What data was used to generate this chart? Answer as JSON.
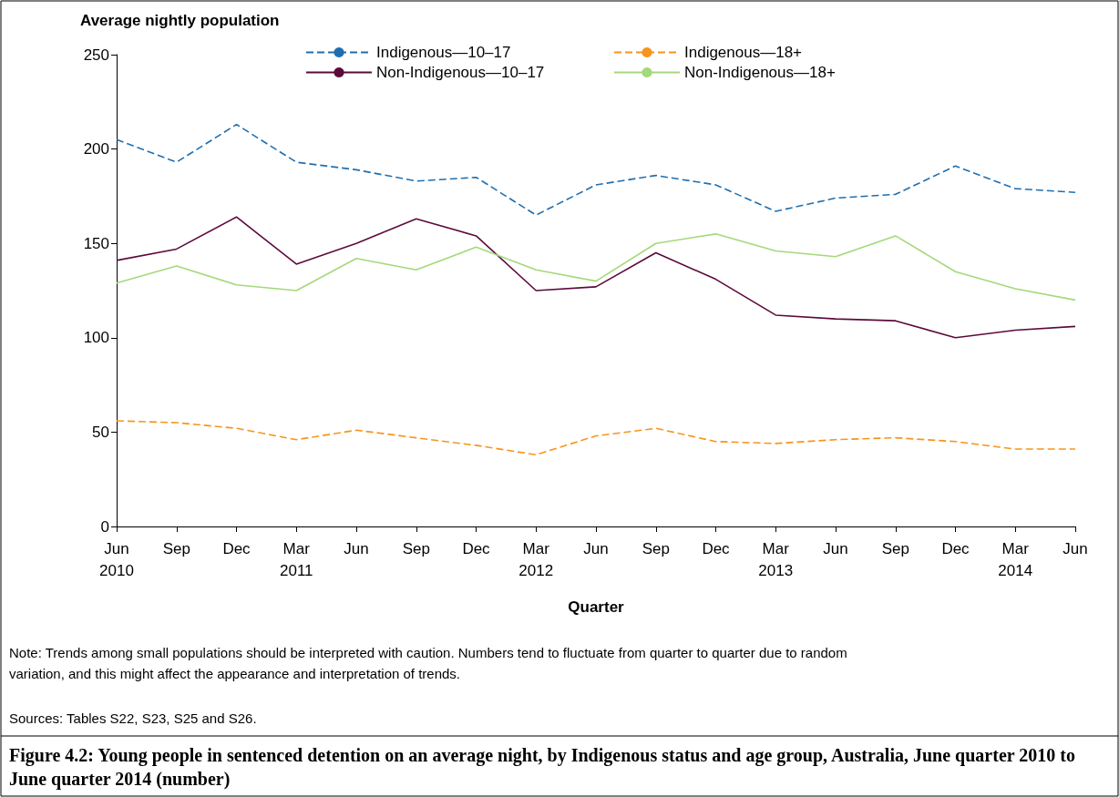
{
  "chart_data": {
    "type": "line",
    "title": "Figure 4.2: Young people in sentenced detention on an average night, by Indigenous status and age group, Australia, June quarter 2010 to June quarter 2014 (number)",
    "ylabel": "Average nightly population",
    "xlabel": "Quarter",
    "categories": [
      "Jun\n2010",
      "Sep",
      "Dec",
      "Mar\n2011",
      "Jun",
      "Sep",
      "Dec",
      "Mar\n2012",
      "Jun",
      "Sep",
      "Dec",
      "Mar\n2013",
      "Jun",
      "Sep",
      "Dec",
      "Mar\n2014",
      "Jun"
    ],
    "series": [
      {
        "name": "Indigenous—10–17",
        "color": "#1f6fb0",
        "line_style": "dashed",
        "values": [
          205,
          193,
          213,
          193,
          189,
          183,
          185,
          165,
          181,
          186,
          181,
          167,
          174,
          176,
          191,
          179,
          177
        ]
      },
      {
        "name": "Indigenous—18+",
        "color": "#f7941d",
        "line_style": "dashed",
        "values": [
          56,
          55,
          52,
          46,
          51,
          47,
          43,
          38,
          48,
          52,
          45,
          44,
          46,
          47,
          45,
          41,
          41
        ]
      },
      {
        "name": "Non-Indigenous—10–17",
        "color": "#5c0a3c",
        "line_style": "solid",
        "values": [
          141,
          147,
          164,
          139,
          150,
          163,
          154,
          125,
          127,
          145,
          131,
          112,
          110,
          109,
          100,
          104,
          106
        ]
      },
      {
        "name": "Non-Indigenous—18+",
        "color": "#a3d97a",
        "line_style": "solid",
        "values": [
          129,
          138,
          128,
          125,
          142,
          136,
          148,
          136,
          130,
          150,
          155,
          146,
          143,
          154,
          135,
          126,
          120
        ]
      }
    ],
    "ylim": [
      0,
      250
    ],
    "yticks": [
      0,
      50,
      100,
      150,
      200,
      250
    ],
    "grid": false,
    "legend": "top",
    "marker": "none",
    "annotations": [
      "Note: Trends among small populations should be interpreted with caution. Numbers tend to fluctuate from quarter to quarter due to random variation, and this might affect the appearance and interpretation of trends.",
      "Sources: Tables S22, S23, S25 and S26."
    ]
  }
}
